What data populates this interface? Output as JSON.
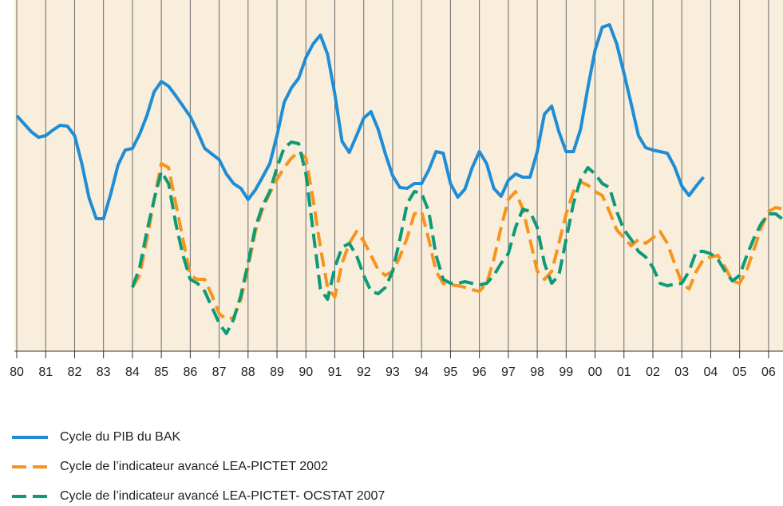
{
  "chart_data": {
    "type": "line",
    "xlim": [
      80,
      106.5
    ],
    "ylim": [
      0,
      44
    ],
    "xticks": [
      80,
      81,
      82,
      83,
      84,
      85,
      86,
      87,
      88,
      89,
      90,
      91,
      92,
      93,
      94,
      95,
      96,
      97,
      98,
      99,
      {
        "value": 100,
        "label": "00"
      },
      {
        "value": 101,
        "label": "01"
      },
      {
        "value": 102,
        "label": "02"
      },
      {
        "value": 103,
        "label": "03"
      },
      {
        "value": 104,
        "label": "04"
      },
      {
        "value": 105,
        "label": "05"
      },
      {
        "value": 106,
        "label": "06"
      }
    ],
    "grid": true,
    "legend": "bottom",
    "series": [
      {
        "name": "Cycle du PIB du BAK",
        "color": "#1f8dd6",
        "line_style": "solid",
        "x": [
          80,
          80.25,
          80.5,
          80.75,
          81,
          81.25,
          81.5,
          81.75,
          82,
          82.25,
          82.5,
          82.75,
          83,
          83.25,
          83.5,
          83.75,
          84,
          84.25,
          84.5,
          84.75,
          85,
          85.25,
          85.5,
          85.75,
          86,
          86.25,
          86.5,
          86.75,
          87,
          87.25,
          87.5,
          87.75,
          88,
          88.25,
          88.5,
          88.75,
          89,
          89.25,
          89.5,
          89.75,
          90,
          90.25,
          90.5,
          90.75,
          91,
          91.25,
          91.5,
          91.75,
          92,
          92.25,
          92.5,
          92.75,
          93,
          93.25,
          93.5,
          93.75,
          94,
          94.25,
          94.5,
          94.75,
          95,
          95.25,
          95.5,
          95.75,
          96,
          96.25,
          96.5,
          96.75,
          97,
          97.25,
          97.5,
          97.75,
          98,
          98.25,
          98.5,
          98.75,
          99,
          99.25,
          99.5,
          99.75,
          100,
          100.25,
          100.5,
          100.75,
          101,
          101.25,
          101.5,
          101.75,
          102,
          102.25,
          102.5,
          102.75,
          103,
          103.25,
          103.5,
          103.75
        ],
        "values": [
          29.5,
          28.5,
          27.5,
          26.8,
          27,
          27.7,
          28.3,
          28.2,
          27,
          23.5,
          19.2,
          16.6,
          16.6,
          19.7,
          23.3,
          25.2,
          25.4,
          27.2,
          29.5,
          32.5,
          33.8,
          33.2,
          32,
          30.7,
          29.4,
          27.5,
          25.4,
          24.7,
          24,
          22.2,
          21,
          20.4,
          19,
          20.2,
          21.8,
          23.5,
          27,
          31.2,
          33,
          34.2,
          36.8,
          38.5,
          39.6,
          37.2,
          32.2,
          26.3,
          24.9,
          27,
          29.2,
          30,
          27.8,
          24.7,
          22,
          20.5,
          20.4,
          21,
          21,
          22.7,
          25,
          24.8,
          21,
          19.3,
          20.3,
          23,
          25,
          23.5,
          20.4,
          19.4,
          21.4,
          22.2,
          21.8,
          21.8,
          25,
          29.7,
          30.7,
          27.5,
          25,
          25,
          27.8,
          33,
          37.7,
          40.6,
          40.9,
          38.5,
          34.8,
          31,
          27,
          25.5,
          25.2,
          25,
          24.8,
          23.1,
          20.7,
          19.5,
          20.7,
          21.8
        ]
      },
      {
        "name": "Cycle de l’indicateur avancé LEA-PICTET 2002",
        "color": "#f7941d",
        "line_style": "dashed",
        "x": [
          84,
          84.25,
          84.5,
          84.75,
          85,
          85.25,
          85.5,
          85.75,
          86,
          86.25,
          86.5,
          86.75,
          87,
          87.25,
          87.5,
          87.75,
          88,
          88.25,
          88.5,
          88.75,
          89,
          89.25,
          89.5,
          89.75,
          90,
          90.25,
          90.5,
          90.75,
          91,
          91.25,
          91.5,
          91.75,
          92,
          92.25,
          92.5,
          92.75,
          93,
          93.25,
          93.5,
          93.75,
          94,
          94.25,
          94.5,
          94.75,
          95,
          95.25,
          95.5,
          95.75,
          96,
          96.25,
          96.5,
          96.75,
          97,
          97.25,
          97.5,
          97.75,
          98,
          98.25,
          98.5,
          98.75,
          99,
          99.25,
          99.5,
          99.75,
          100,
          100.25,
          100.5,
          100.75,
          101,
          101.25,
          101.5,
          101.75,
          102,
          102.25,
          102.5,
          102.75,
          103,
          103.25,
          103.5,
          103.75,
          104,
          104.25,
          104.5,
          104.75,
          105,
          105.25,
          105.5,
          105.75,
          106,
          106.25,
          106.5
        ],
        "values": [
          8,
          9.5,
          14,
          19,
          23.5,
          23,
          18.5,
          14,
          9.5,
          9,
          9,
          7,
          4.7,
          4,
          4.2,
          6.5,
          10.5,
          15,
          17.8,
          19.8,
          21.5,
          23,
          24.2,
          25,
          24.2,
          19,
          13,
          8,
          6.8,
          11,
          13.5,
          15,
          13.8,
          12,
          10.2,
          9.5,
          10,
          11.8,
          14.2,
          17.2,
          17.5,
          14,
          10,
          8.5,
          8.3,
          8.2,
          8,
          7.7,
          7.5,
          8.5,
          11.5,
          15.5,
          19,
          20,
          17.8,
          14,
          10,
          9,
          10,
          13.5,
          17.2,
          20,
          21.2,
          20.8,
          20,
          19.5,
          17.5,
          15.2,
          14.2,
          13.2,
          14,
          13.5,
          14.2,
          15,
          13.5,
          11,
          8.5,
          7.8,
          10,
          11.5,
          11.8,
          12,
          10.5,
          8.8,
          8.5,
          10.2,
          12.8,
          15.5,
          17.5,
          18,
          17.8
        ]
      },
      {
        "name": "Cycle de l’indicateur avancé LEA-PICTET- OCSTAT  2007",
        "color": "#0e9a78",
        "line_style": "dashed",
        "x": [
          84,
          84.25,
          84.5,
          84.75,
          85,
          85.25,
          85.5,
          85.75,
          86,
          86.25,
          86.5,
          86.75,
          87,
          87.25,
          87.5,
          87.75,
          88,
          88.25,
          88.5,
          88.75,
          89,
          89.25,
          89.5,
          89.75,
          90,
          90.25,
          90.5,
          90.75,
          91,
          91.25,
          91.5,
          91.75,
          92,
          92.25,
          92.5,
          92.75,
          93,
          93.25,
          93.5,
          93.75,
          94,
          94.25,
          94.5,
          94.75,
          95,
          95.25,
          95.5,
          95.75,
          96,
          96.25,
          96.5,
          96.75,
          97,
          97.25,
          97.5,
          97.75,
          98,
          98.25,
          98.5,
          98.75,
          99,
          99.25,
          99.5,
          99.75,
          100,
          100.25,
          100.5,
          100.75,
          101,
          101.25,
          101.5,
          101.75,
          102,
          102.25,
          102.5,
          102.75,
          103,
          103.25,
          103.5,
          103.75,
          104,
          104.25,
          104.5,
          104.75,
          105,
          105.25,
          105.5,
          105.75,
          106,
          106.25,
          106.5
        ],
        "values": [
          8,
          10.5,
          15,
          19,
          22.5,
          21,
          16,
          12,
          9,
          8.5,
          7.5,
          5.5,
          3.5,
          2.2,
          4,
          7,
          11,
          15.5,
          18.2,
          20,
          23,
          25.5,
          26.2,
          26,
          22.2,
          15,
          7.8,
          6.5,
          10.5,
          13,
          13.5,
          12,
          9.5,
          7.5,
          7.2,
          8,
          10,
          14,
          18.5,
          20,
          19.8,
          17.5,
          12,
          9,
          8.5,
          8.5,
          8.7,
          8.5,
          8.3,
          8.5,
          9.5,
          11,
          12.2,
          15.5,
          17.8,
          17.5,
          15.5,
          11,
          8.5,
          9.5,
          14,
          18.5,
          21.5,
          23,
          22.2,
          21,
          20.5,
          17.5,
          15.2,
          14,
          12.5,
          11.8,
          10.5,
          8.5,
          8.2,
          8.4,
          8.5,
          10,
          12.5,
          12.5,
          12.2,
          11.5,
          10,
          8.8,
          9.5,
          12,
          14.2,
          16,
          17.2,
          17.2,
          16.5
        ]
      }
    ]
  }
}
